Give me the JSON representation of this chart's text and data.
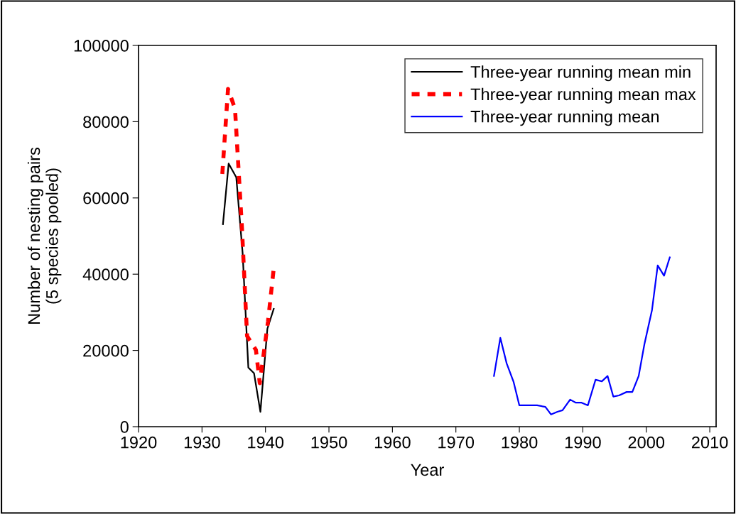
{
  "chart_data": {
    "type": "line",
    "xlabel": "Year",
    "ylabel": "Number of nesting pairs\n(5 species pooled)",
    "xlim": [
      1920,
      2011
    ],
    "xticks": [
      1920,
      1930,
      1940,
      1950,
      1960,
      1970,
      1980,
      1990,
      2000,
      2010
    ],
    "ylim": [
      0,
      100000
    ],
    "yticks": [
      0,
      20000,
      40000,
      60000,
      80000,
      100000
    ],
    "grid": false,
    "legend": "top right",
    "marker": "none",
    "series": [
      {
        "name": "Three-year running mean min",
        "color": "#000000",
        "line_style": "solid",
        "x": [
          1933.3,
          1934.2,
          1935.4,
          1936.4,
          1937.3,
          1938.2,
          1939.2,
          1940.3,
          1941.3
        ],
        "values": [
          53100,
          69000,
          65400,
          45500,
          15500,
          14000,
          3900,
          25700,
          30900
        ]
      },
      {
        "name": "Three-year running mean max",
        "color": "#ff0000",
        "line_style": "dashed",
        "x": [
          1933.2,
          1934.1,
          1935.2,
          1936.3,
          1937.1,
          1938.5,
          1939.1,
          1940.4,
          1941.3
        ],
        "values": [
          66300,
          88600,
          83400,
          52000,
          23800,
          20100,
          11400,
          27600,
          41500
        ]
      },
      {
        "name": "Three-year running mean",
        "color": "#0000ff",
        "line_style": "solid",
        "x": [
          1976.0,
          1977.0,
          1978.0,
          1979.1,
          1980.0,
          1981.0,
          1982.0,
          1982.8,
          1984.1,
          1985.0,
          1986.0,
          1986.8,
          1988.0,
          1988.9,
          1989.8,
          1990.8,
          1992.0,
          1993.0,
          1993.9,
          1994.8,
          1995.7,
          1996.9,
          1997.8,
          1998.8,
          1999.7,
          2000.9,
          2001.8,
          2002.8,
          2003.7
        ],
        "values": [
          13300,
          23300,
          16600,
          11700,
          5600,
          5600,
          5600,
          5600,
          5200,
          3200,
          3900,
          4300,
          7100,
          6300,
          6300,
          5600,
          12300,
          11900,
          13300,
          7900,
          8200,
          9100,
          9100,
          13300,
          21600,
          30600,
          42300,
          39600,
          44400
        ]
      }
    ]
  }
}
